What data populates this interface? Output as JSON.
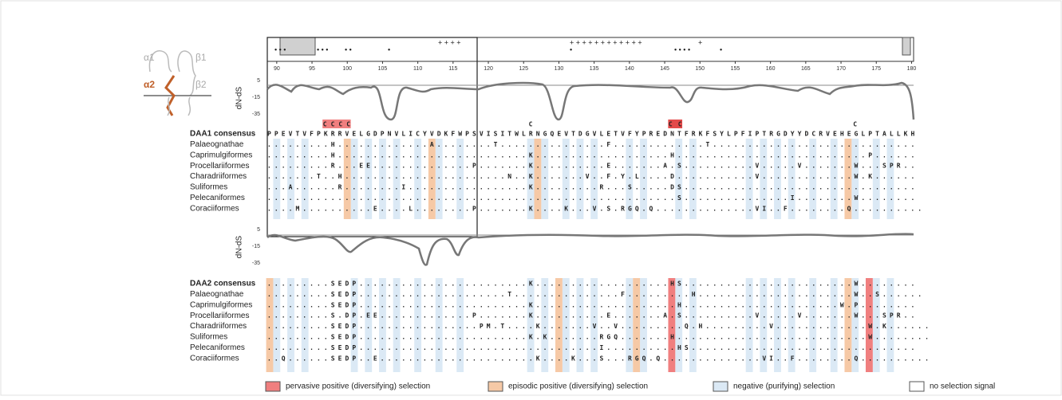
{
  "diagram": {
    "structure_labels": [
      "α1",
      "β1",
      "α2",
      "β2"
    ],
    "position_ticks": [
      90,
      95,
      100,
      105,
      110,
      115,
      120,
      125,
      130,
      135,
      140,
      145,
      150,
      155,
      160,
      165,
      170,
      175,
      180
    ],
    "y_axis_label": "dN-dS",
    "y_ticks": [
      5,
      -15,
      -35
    ],
    "daa1": {
      "codon_marks": "CCCC",
      "codon_marks_2": "CC",
      "codon_mark_a": "C",
      "codon_mark_b": "C",
      "consensus_label": "DAA1 consensus",
      "consensus": "PPEVTVFPKRRVELGDPNVLICYVDKFWPSVISITWLRNGQEVTDGVLETVFYPREDNTFRKFSYLPFIPTRGDYYDCRVEHEGLPTALLKH",
      "rows": [
        {
          "label": "Palaeognathae",
          "seq": ".........H.............A........T...............F.............T............................."
        },
        {
          "label": "Caprimulgiformes",
          "seq": ".........H...........................K...................H...........................P......"
        },
        {
          "label": "Procellariiformes",
          "seq": ".........R...EE..............P.......K..........E.......A.S..........V.....V.......W...SPR.."
        },
        {
          "label": "Charadriiformes",
          "seq": ".......T..H.......................N..K.......V..F.Y.L....D...........V.............W.K......"
        },
        {
          "label": "Suliformes",
          "seq": "...A......R........I.................K.........R...S.....DS................................."
        },
        {
          "label": "Pelecaniformes",
          "seq": "..........................................................S...............I........W........"
        },
        {
          "label": "Coraciiformes",
          "seq": "....M..........E....L........P.......K....K...V.S.RGQ.Q..............VI..F........Q.........."
        }
      ]
    },
    "daa2": {
      "consensus_label": "DAA2 consensus",
      "consensus": ".........SEDP........................K...................HS........................W........",
      "rows": [
        {
          "label": "Palaeognathae",
          "seq": ".........SEDP.....................T...............F.........H......................W..S......"
        },
        {
          "label": "Caprimulgiformes",
          "seq": ".........SEDP........................K....................H......................W.P........"
        },
        {
          "label": "Procellariiformes",
          "seq": ".........S.DP.EE.............P.......K..........E.......A.S..........V.....V.......W...SPR.."
        },
        {
          "label": "Charadriiformes",
          "seq": ".........SEDP.................PM.T....K.......V..V.........Q.H.........V.............W.K......"
        },
        {
          "label": "Suliformes",
          "seq": ".........SEDP........................K.K.......RGQ.......H...........................W........"
        },
        {
          "label": "Pelecaniformes",
          "seq": ".........SEDP..................................I..........HS................................"
        },
        {
          "label": "Coraciiformes",
          "seq": "..Q......SEDP..E......................K....K...S...RGQ.Q..............VI..F........Q.........."
        }
      ]
    },
    "legend": [
      {
        "label": "pervasive positive (diversifying) selection",
        "color": "#f07f7f"
      },
      {
        "label": "episodic positive (diversifying) selection",
        "color": "#f6c9a6"
      },
      {
        "label": "negative (purifying) selection",
        "color": "#dbe9f5"
      },
      {
        "label": "no selection signal",
        "color": "#ffffff"
      }
    ]
  }
}
